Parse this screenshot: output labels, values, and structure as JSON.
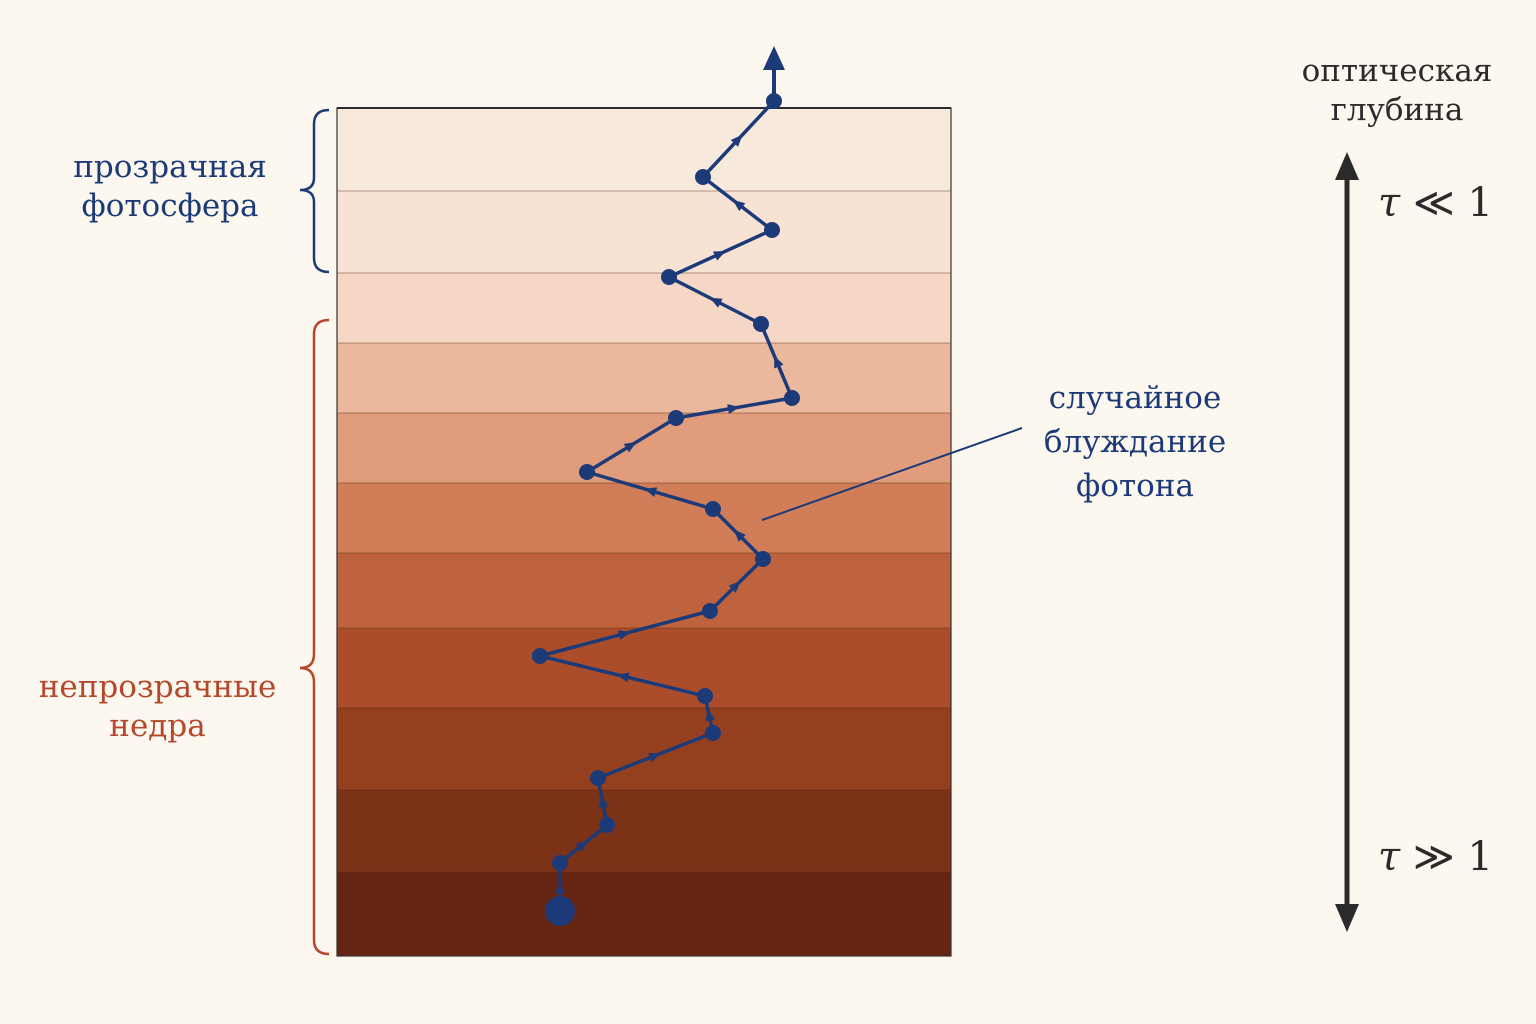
{
  "labels": {
    "transparent": [
      "прозрачная",
      "фотосфера"
    ],
    "opaque": [
      "непрозрачные",
      "недра"
    ],
    "random_walk": [
      "случайное",
      "блуждание",
      "фотона"
    ],
    "optical_depth": [
      "оптическая",
      "глубина"
    ]
  },
  "tau_top": {
    "symbol": "τ",
    "relation": "≪",
    "value": "1"
  },
  "tau_bottom": {
    "symbol": "τ",
    "relation": "≫",
    "value": "1"
  },
  "colors": {
    "background": "#fcf8ef",
    "photon_path": "#1d3a78",
    "transparent_brace": "#1d3a78",
    "opaque_brace": "#b5482b",
    "axis": "#2b2b2b",
    "layers_top_to_bottom": [
      "#f8e9dd",
      "#f7e2d3",
      "#f6d7c5",
      "#ebb89d",
      "#e19c7c",
      "#d17e58",
      "#be633d",
      "#ab4d2a",
      "#94401f",
      "#7c3217",
      "#662512"
    ]
  },
  "layer_count": 11,
  "photon_walk_points": 22,
  "icons": [
    "photon-exit-arrow-icon",
    "double-headed-axis-arrow-icon"
  ]
}
